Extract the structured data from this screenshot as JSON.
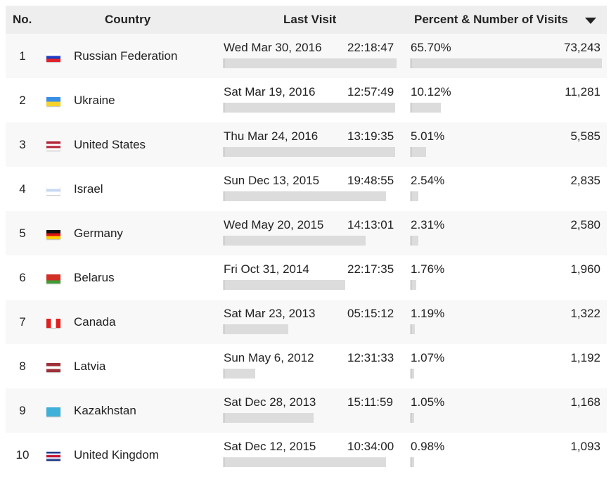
{
  "header": {
    "no": "No.",
    "country": "Country",
    "last_visit": "Last Visit",
    "percent_visits": "Percent & Number of Visits",
    "sort_icon": "sort-descending-icon"
  },
  "rows": [
    {
      "no": "1",
      "country": "Russian Federation",
      "flag": [
        "#ffffff",
        "#1c3fc4",
        "#e0202a"
      ],
      "date": "Wed Mar 30, 2016",
      "time": "22:18:47",
      "percent": "65.70%",
      "visits": "73,243",
      "recency": 1.0
    },
    {
      "no": "2",
      "country": "Ukraine",
      "flag": [
        "#3a8ee6",
        "#f6d32a"
      ],
      "date": "Sat Mar 19, 2016",
      "time": "12:57:49",
      "percent": "10.12%",
      "visits": "11,281",
      "recency": 0.99
    },
    {
      "no": "3",
      "country": "United States",
      "flag": [
        "#b22234",
        "#ffffff",
        "#b22234",
        "#ffffff"
      ],
      "date": "Thu Mar 24, 2016",
      "time": "13:19:35",
      "percent": "5.01%",
      "visits": "5,585",
      "recency": 0.99
    },
    {
      "no": "4",
      "country": "Israel",
      "flag": [
        "#ffffff",
        "#c9d9f2",
        "#ffffff"
      ],
      "date": "Sun Dec 13, 2015",
      "time": "19:48:55",
      "percent": "2.54%",
      "visits": "2,835",
      "recency": 0.94
    },
    {
      "no": "5",
      "country": "Germany",
      "flag": [
        "#111111",
        "#dd1111",
        "#ffcc00"
      ],
      "date": "Wed May 20, 2015",
      "time": "14:13:01",
      "percent": "2.31%",
      "visits": "2,580",
      "recency": 0.82
    },
    {
      "no": "6",
      "country": "Belarus",
      "flag": [
        "#d22f27",
        "#d22f27",
        "#3f9c35"
      ],
      "date": "Fri Oct 31, 2014",
      "time": "22:17:35",
      "percent": "1.76%",
      "visits": "1,960",
      "recency": 0.7
    },
    {
      "no": "7",
      "country": "Canada",
      "flag": [
        "#e02020",
        "#ffffff",
        "#e02020"
      ],
      "flag_dir": "v",
      "date": "Sat Mar 23, 2013",
      "time": "05:15:12",
      "percent": "1.19%",
      "visits": "1,322",
      "recency": 0.37
    },
    {
      "no": "8",
      "country": "Latvia",
      "flag": [
        "#9e3039",
        "#ffffff",
        "#9e3039"
      ],
      "date": "Sun May 6, 2012",
      "time": "12:31:33",
      "percent": "1.07%",
      "visits": "1,192",
      "recency": 0.18
    },
    {
      "no": "9",
      "country": "Kazakhstan",
      "flag": [
        "#3fb0d8",
        "#3fb0d8"
      ],
      "date": "Sat Dec 28, 2013",
      "time": "15:11:59",
      "percent": "1.05%",
      "visits": "1,168",
      "recency": 0.52
    },
    {
      "no": "10",
      "country": "United Kingdom",
      "flag": [
        "#1e3c8c",
        "#e0e0f0",
        "#c8102e",
        "#e0e0f0",
        "#1e3c8c"
      ],
      "date": "Sat Dec 12, 2015",
      "time": "10:34:00",
      "percent": "0.98%",
      "visits": "1,093",
      "recency": 0.94
    }
  ]
}
